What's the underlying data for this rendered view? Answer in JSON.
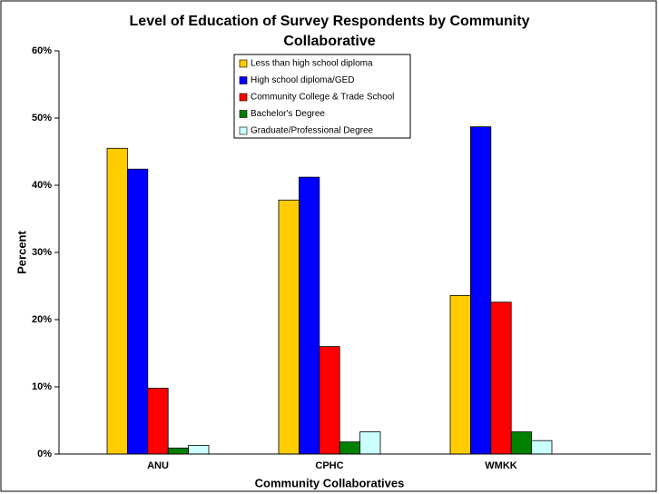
{
  "chart_data": {
    "type": "bar",
    "title": "Level of Education of Survey Respondents by Community Collaborative",
    "x_label": "Community Collaboratives",
    "y_label": "Percent",
    "categories": [
      "ANU",
      "CPHC",
      "WMKK"
    ],
    "series": [
      {
        "name": "Less than high school diploma",
        "color": "#ffcc00",
        "values": [
          45.5,
          37.8,
          23.6
        ]
      },
      {
        "name": "High school diploma/GED",
        "color": "#0000ff",
        "values": [
          42.4,
          41.2,
          48.7
        ]
      },
      {
        "name": "Community College & Trade School",
        "color": "#ff0000",
        "values": [
          9.8,
          16.0,
          22.6
        ]
      },
      {
        "name": "Bachelor's Degree",
        "color": "#008000",
        "values": [
          0.9,
          1.8,
          3.3
        ]
      },
      {
        "name": "Graduate/Professional Degree",
        "color": "#ccffff",
        "values": [
          1.3,
          3.3,
          2.0
        ]
      }
    ],
    "ylim": [
      0,
      60
    ],
    "yticks": [
      {
        "value": 0,
        "label": "0%"
      },
      {
        "value": 10,
        "label": "10%"
      },
      {
        "value": 20,
        "label": "20%"
      },
      {
        "value": 30,
        "label": "30%"
      },
      {
        "value": 40,
        "label": "40%"
      },
      {
        "value": 50,
        "label": "50%"
      },
      {
        "value": 60,
        "label": "60%"
      }
    ],
    "legend": "top"
  }
}
